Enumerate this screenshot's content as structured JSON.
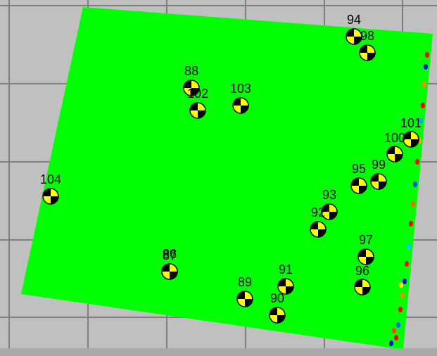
{
  "colors": {
    "background": "#c0c0c0",
    "grid": "#7f7f7f",
    "surface": "#00ff00",
    "marker_fill": "#ffff00",
    "marker_dark": "#000000"
  },
  "control_points": [
    {
      "id": "94",
      "label": "94"
    },
    {
      "id": "98",
      "label": "98"
    },
    {
      "id": "88",
      "label": "88"
    },
    {
      "id": "102",
      "label": "102"
    },
    {
      "id": "103",
      "label": "103"
    },
    {
      "id": "101",
      "label": "101"
    },
    {
      "id": "100",
      "label": "100"
    },
    {
      "id": "95",
      "label": "95"
    },
    {
      "id": "99",
      "label": "99"
    },
    {
      "id": "104",
      "label": "104"
    },
    {
      "id": "93",
      "label": "93"
    },
    {
      "id": "92",
      "label": "92"
    },
    {
      "id": "86",
      "label": "86"
    },
    {
      "id": "87",
      "label": "87"
    },
    {
      "id": "97",
      "label": "97"
    },
    {
      "id": "91",
      "label": "91"
    },
    {
      "id": "96",
      "label": "96"
    },
    {
      "id": "89",
      "label": "89"
    },
    {
      "id": "90",
      "label": "90"
    }
  ]
}
